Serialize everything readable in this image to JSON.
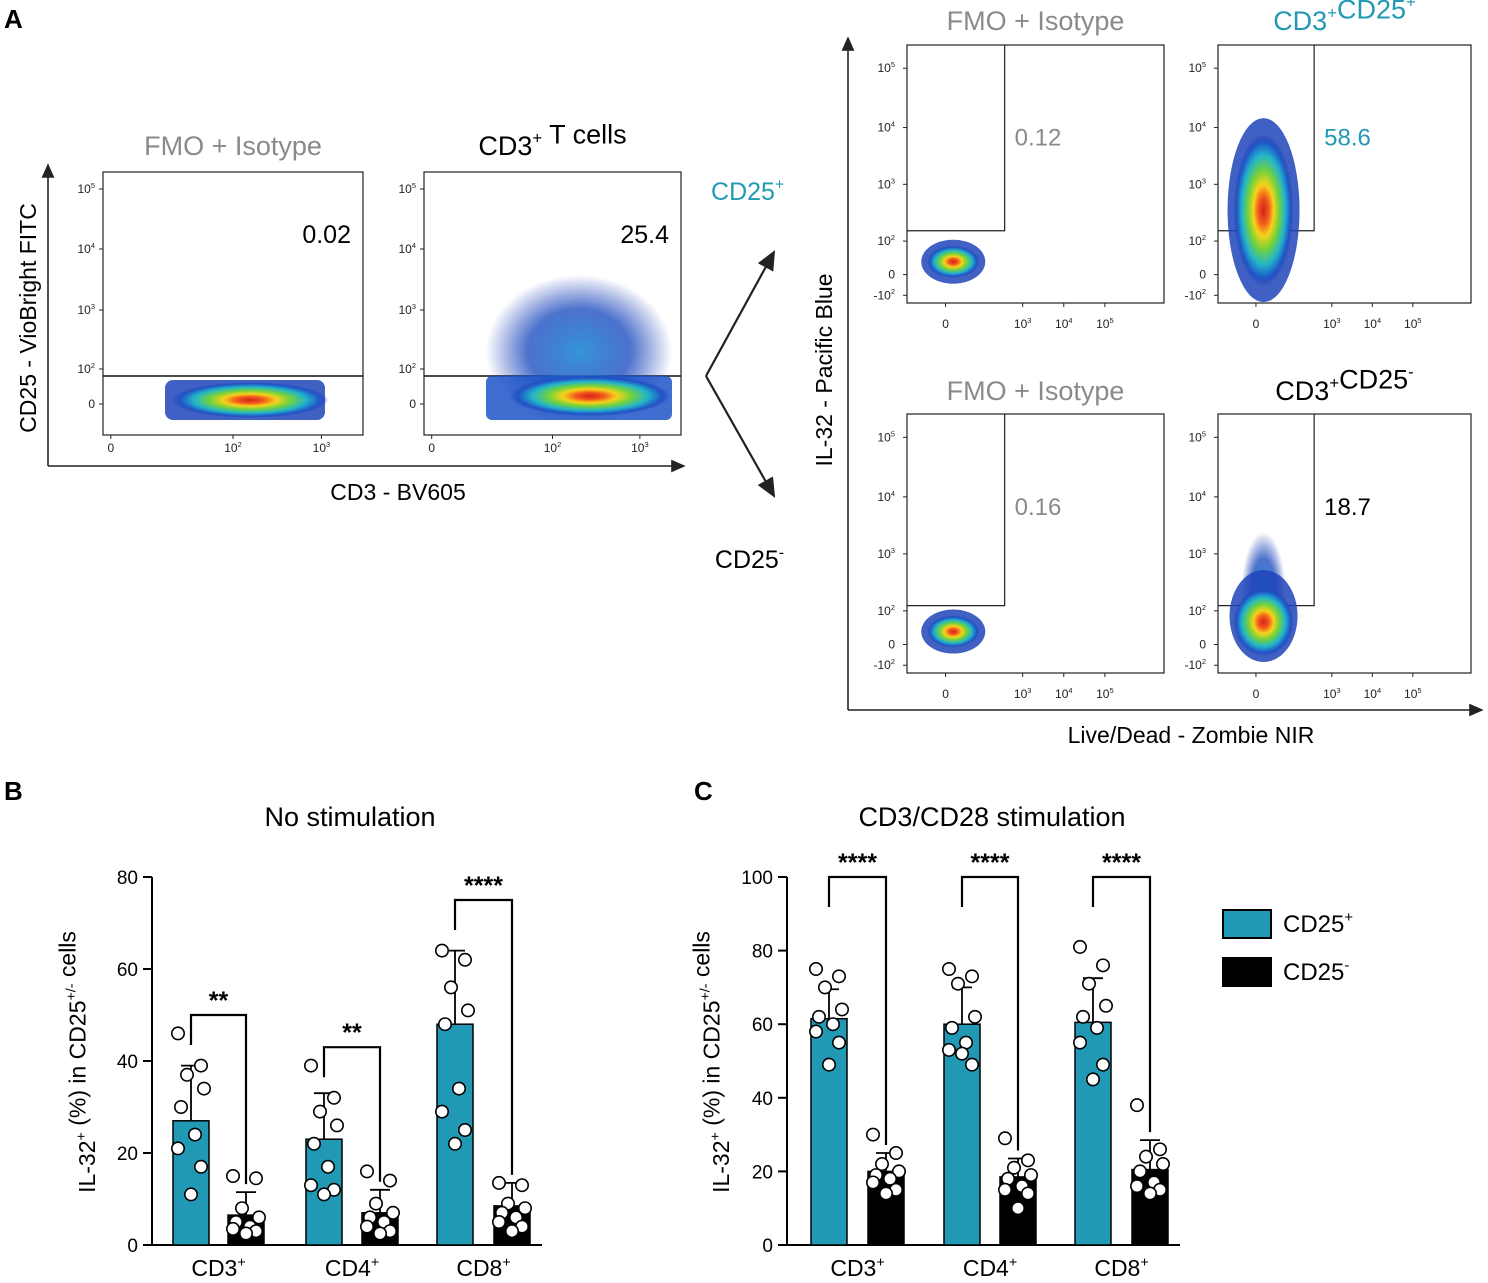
{
  "panel_labels": {
    "A": "A",
    "B": "B",
    "C": "C"
  },
  "colors": {
    "teal": "#2199b4",
    "gray": "#8a8a8a",
    "black": "#000000"
  },
  "panel_a": {
    "left_plots": [
      {
        "title": "FMO + Isotype",
        "title_color": "gray",
        "value": "0.02",
        "value_color": "black",
        "variant": "fmo"
      },
      {
        "title": "CD3",
        "title_sup": "+",
        "title_rest": " T cells",
        "title_color": "black",
        "value": "25.4",
        "value_color": "black",
        "variant": "cd3"
      }
    ],
    "left_yaxis_label": "CD25 - VioBright FITC",
    "left_xaxis_label": "CD3 - BV605",
    "left_yticks": [
      {
        "base": "10",
        "sup": "5"
      },
      {
        "base": "10",
        "sup": "4"
      },
      {
        "base": "10",
        "sup": "3"
      },
      {
        "base": "10",
        "sup": "2"
      },
      {
        "base": "0",
        "sup": ""
      }
    ],
    "left_xticks": [
      {
        "base": "0",
        "sup": ""
      },
      {
        "base": "10",
        "sup": "2"
      },
      {
        "base": "10",
        "sup": "3"
      }
    ],
    "branch_up": {
      "label": "CD25",
      "sup": "+"
    },
    "branch_down": {
      "label": "CD25",
      "sup": "-"
    },
    "right_yaxis_label": "IL-32 - Pacific Blue",
    "right_xaxis_label": "Live/Dead - Zombie NIR",
    "right_yticks": [
      {
        "base": "10",
        "sup": "5"
      },
      {
        "base": "10",
        "sup": "4"
      },
      {
        "base": "10",
        "sup": "3"
      },
      {
        "base": "10",
        "sup": "2"
      },
      {
        "base": "0",
        "sup": ""
      },
      {
        "base": "-10",
        "sup": "2"
      }
    ],
    "right_xticks": [
      {
        "base": "0",
        "sup": ""
      },
      {
        "base": "10",
        "sup": "3"
      },
      {
        "base": "10",
        "sup": "4"
      },
      {
        "base": "10",
        "sup": "5"
      }
    ],
    "right_plots": [
      {
        "title": "FMO + Isotype",
        "title_color": "gray",
        "value": "0.12",
        "value_color": "gray",
        "variant": "fmo_small"
      },
      {
        "title": "CD3",
        "title_sup": "+",
        "title_rest": "CD25",
        "title_sup2": "+",
        "title_color": "teal",
        "value": "58.6",
        "value_color": "teal",
        "variant": "pos_tall"
      },
      {
        "title": "FMO + Isotype",
        "title_color": "gray",
        "value": "0.16",
        "value_color": "gray",
        "variant": "fmo_small"
      },
      {
        "title": "CD3",
        "title_sup": "+",
        "title_rest": "CD25",
        "title_sup2": "-",
        "title_color": "black",
        "value": "18.7",
        "value_color": "black",
        "variant": "neg_tall"
      }
    ]
  },
  "chart_data": [
    {
      "type": "bar",
      "panel": "B",
      "title": "No stimulation",
      "ylabel": "IL-32+ (%) in CD25+/- cells",
      "ylabel_parts": {
        "a": "IL-32",
        "a_sup": "+",
        "b": " (%) in CD25",
        "b_sup": "+/-",
        "c": " cells"
      },
      "ylim": [
        0,
        80
      ],
      "yticks": [
        0,
        20,
        40,
        60,
        80
      ],
      "categories": [
        "CD3+",
        "CD4+",
        "CD8+"
      ],
      "category_parts": [
        {
          "base": "CD3",
          "sup": "+"
        },
        {
          "base": "CD4",
          "sup": "+"
        },
        {
          "base": "CD8",
          "sup": "+"
        }
      ],
      "series": [
        {
          "name": "CD25+",
          "color": "teal",
          "values": [
            27,
            23,
            48
          ],
          "sd": [
            12,
            10,
            16
          ],
          "points": [
            [
              46,
              39,
              37,
              34,
              30,
              24,
              21,
              17,
              11
            ],
            [
              39,
              32,
              29,
              26,
              22,
              17,
              13,
              12,
              11
            ],
            [
              64,
              62,
              56,
              51,
              48,
              34,
              29,
              25,
              22
            ]
          ]
        },
        {
          "name": "CD25-",
          "color": "black",
          "values": [
            6.5,
            7,
            8.5
          ],
          "sd": [
            5,
            5,
            5
          ],
          "points": [
            [
              15,
              14.5,
              8,
              6,
              5,
              4,
              3.5,
              3,
              2.5
            ],
            [
              16,
              14,
              9,
              7,
              6,
              5,
              4,
              3,
              2.5
            ],
            [
              13.5,
              13,
              9,
              8,
              7,
              6,
              5,
              4,
              3
            ]
          ]
        }
      ],
      "significance": [
        "**",
        "**",
        "****"
      ]
    },
    {
      "type": "bar",
      "panel": "C",
      "title": "CD3/CD28 stimulation",
      "ylabel": "IL-32+ (%) in CD25+/- cells",
      "ylabel_parts": {
        "a": "IL-32",
        "a_sup": "+",
        "b": " (%) in CD25",
        "b_sup": "+/-",
        "c": " cells"
      },
      "ylim": [
        0,
        100
      ],
      "yticks": [
        0,
        20,
        40,
        60,
        80,
        100
      ],
      "categories": [
        "CD3+",
        "CD4+",
        "CD8+"
      ],
      "category_parts": [
        {
          "base": "CD3",
          "sup": "+"
        },
        {
          "base": "CD4",
          "sup": "+"
        },
        {
          "base": "CD8",
          "sup": "+"
        }
      ],
      "series": [
        {
          "name": "CD25+",
          "color": "teal",
          "values": [
            61.5,
            60,
            60.5
          ],
          "sd": [
            8,
            10,
            12
          ],
          "points": [
            [
              75,
              73,
              70,
              64,
              62,
              60,
              58,
              55,
              49
            ],
            [
              75,
              73,
              71,
              62,
              59,
              55,
              53,
              49,
              52
            ],
            [
              81,
              76,
              71,
              65,
              62,
              59,
              55,
              49,
              45
            ]
          ]
        },
        {
          "name": "CD25-",
          "color": "black",
          "values": [
            20,
            18.5,
            20.5
          ],
          "sd": [
            5,
            5,
            8
          ],
          "points": [
            [
              30,
              25,
              22,
              20,
              19,
              18,
              17,
              15,
              14
            ],
            [
              29,
              23,
              21,
              19,
              18,
              16,
              15,
              14,
              10
            ],
            [
              38,
              26,
              24,
              22,
              20,
              17,
              16,
              15,
              14
            ]
          ]
        }
      ],
      "significance": [
        "****",
        "****",
        "****"
      ],
      "legend": [
        {
          "label": "CD25",
          "sup": "+",
          "color": "teal"
        },
        {
          "label": "CD25",
          "sup": "-",
          "color": "black"
        }
      ]
    }
  ]
}
